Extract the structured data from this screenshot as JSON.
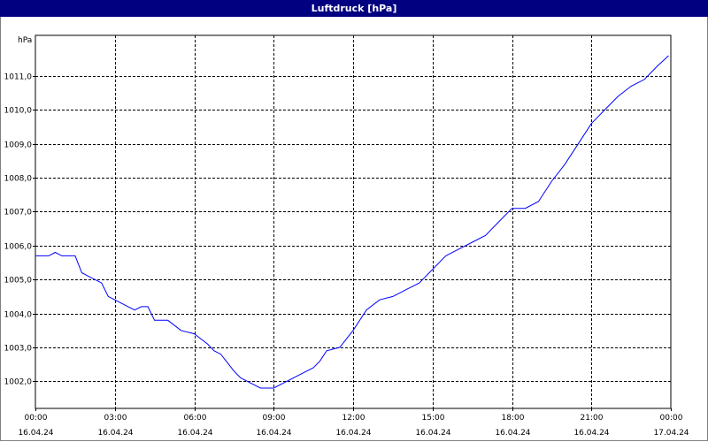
{
  "window": {
    "title": "Luftdruck [hPa]"
  },
  "chart_data": {
    "type": "line",
    "title": "Luftdruck [hPa]",
    "ylabel": "hPa",
    "ylim": [
      1001.2,
      1012.2
    ],
    "y_ticks": [
      {
        "value": 1002.0,
        "label": "1002,0"
      },
      {
        "value": 1003.0,
        "label": "1003,0"
      },
      {
        "value": 1004.0,
        "label": "1004,0"
      },
      {
        "value": 1005.0,
        "label": "1005,0"
      },
      {
        "value": 1006.0,
        "label": "1006,0"
      },
      {
        "value": 1007.0,
        "label": "1007,0"
      },
      {
        "value": 1008.0,
        "label": "1008,0"
      },
      {
        "value": 1009.0,
        "label": "1009,0"
      },
      {
        "value": 1010.0,
        "label": "1010,0"
      },
      {
        "value": 1011.0,
        "label": "1011,0"
      }
    ],
    "x_ticks": [
      {
        "time": "00:00",
        "date": "16.04.24"
      },
      {
        "time": "03:00",
        "date": "16.04.24"
      },
      {
        "time": "06:00",
        "date": "16.04.24"
      },
      {
        "time": "09:00",
        "date": "16.04.24"
      },
      {
        "time": "12:00",
        "date": "16.04.24"
      },
      {
        "time": "15:00",
        "date": "16.04.24"
      },
      {
        "time": "18:00",
        "date": "16.04.24"
      },
      {
        "time": "21:00",
        "date": "16.04.24"
      },
      {
        "time": "00:00",
        "date": "17.04.24"
      }
    ],
    "grid": true,
    "line_color": "#0000ff",
    "series": [
      {
        "x": [
          "16.04.24 00:00",
          "16.04.24 00:30",
          "16.04.24 00:45",
          "16.04.24 01:00",
          "16.04.24 01:30",
          "16.04.24 01:45",
          "16.04.24 02:00",
          "16.04.24 02:30",
          "16.04.24 02:45",
          "16.04.24 03:00",
          "16.04.24 03:30",
          "16.04.24 03:45",
          "16.04.24 04:00",
          "16.04.24 04:15",
          "16.04.24 04:30",
          "16.04.24 05:00",
          "16.04.24 05:30",
          "16.04.24 06:00",
          "16.04.24 06:30",
          "16.04.24 06:45",
          "16.04.24 07:00",
          "16.04.24 07:30",
          "16.04.24 07:45",
          "16.04.24 08:00",
          "16.04.24 08:30",
          "16.04.24 09:00",
          "16.04.24 09:30",
          "16.04.24 10:00",
          "16.04.24 10:30",
          "16.04.24 10:45",
          "16.04.24 11:00",
          "16.04.24 11:30",
          "16.04.24 12:00",
          "16.04.24 12:30",
          "16.04.24 13:00",
          "16.04.24 13:30",
          "16.04.24 14:00",
          "16.04.24 14:30",
          "16.04.24 15:00",
          "16.04.24 15:30",
          "16.04.24 16:00",
          "16.04.24 16:30",
          "16.04.24 17:00",
          "16.04.24 17:30",
          "16.04.24 18:00",
          "16.04.24 18:30",
          "16.04.24 19:00",
          "16.04.24 19:30",
          "16.04.24 20:00",
          "16.04.24 20:30",
          "16.04.24 21:00",
          "16.04.24 21:30",
          "16.04.24 22:00",
          "16.04.24 22:30",
          "16.04.24 23:00",
          "16.04.24 23:30",
          "16.04.24 23:55"
        ],
        "values": [
          1005.7,
          1005.7,
          1005.8,
          1005.7,
          1005.7,
          1005.2,
          1005.1,
          1004.9,
          1004.5,
          1004.4,
          1004.2,
          1004.1,
          1004.2,
          1004.2,
          1003.8,
          1003.8,
          1003.5,
          1003.4,
          1003.1,
          1002.9,
          1002.8,
          1002.3,
          1002.1,
          1002.0,
          1001.8,
          1001.8,
          1002.0,
          1002.2,
          1002.4,
          1002.6,
          1002.9,
          1003.0,
          1003.5,
          1004.1,
          1004.4,
          1004.5,
          1004.7,
          1004.9,
          1005.3,
          1005.7,
          1005.9,
          1006.1,
          1006.3,
          1006.7,
          1007.1,
          1007.1,
          1007.3,
          1007.9,
          1008.4,
          1009.0,
          1009.6,
          1010.0,
          1010.4,
          1010.7,
          1010.9,
          1011.3,
          1011.6
        ]
      }
    ]
  }
}
